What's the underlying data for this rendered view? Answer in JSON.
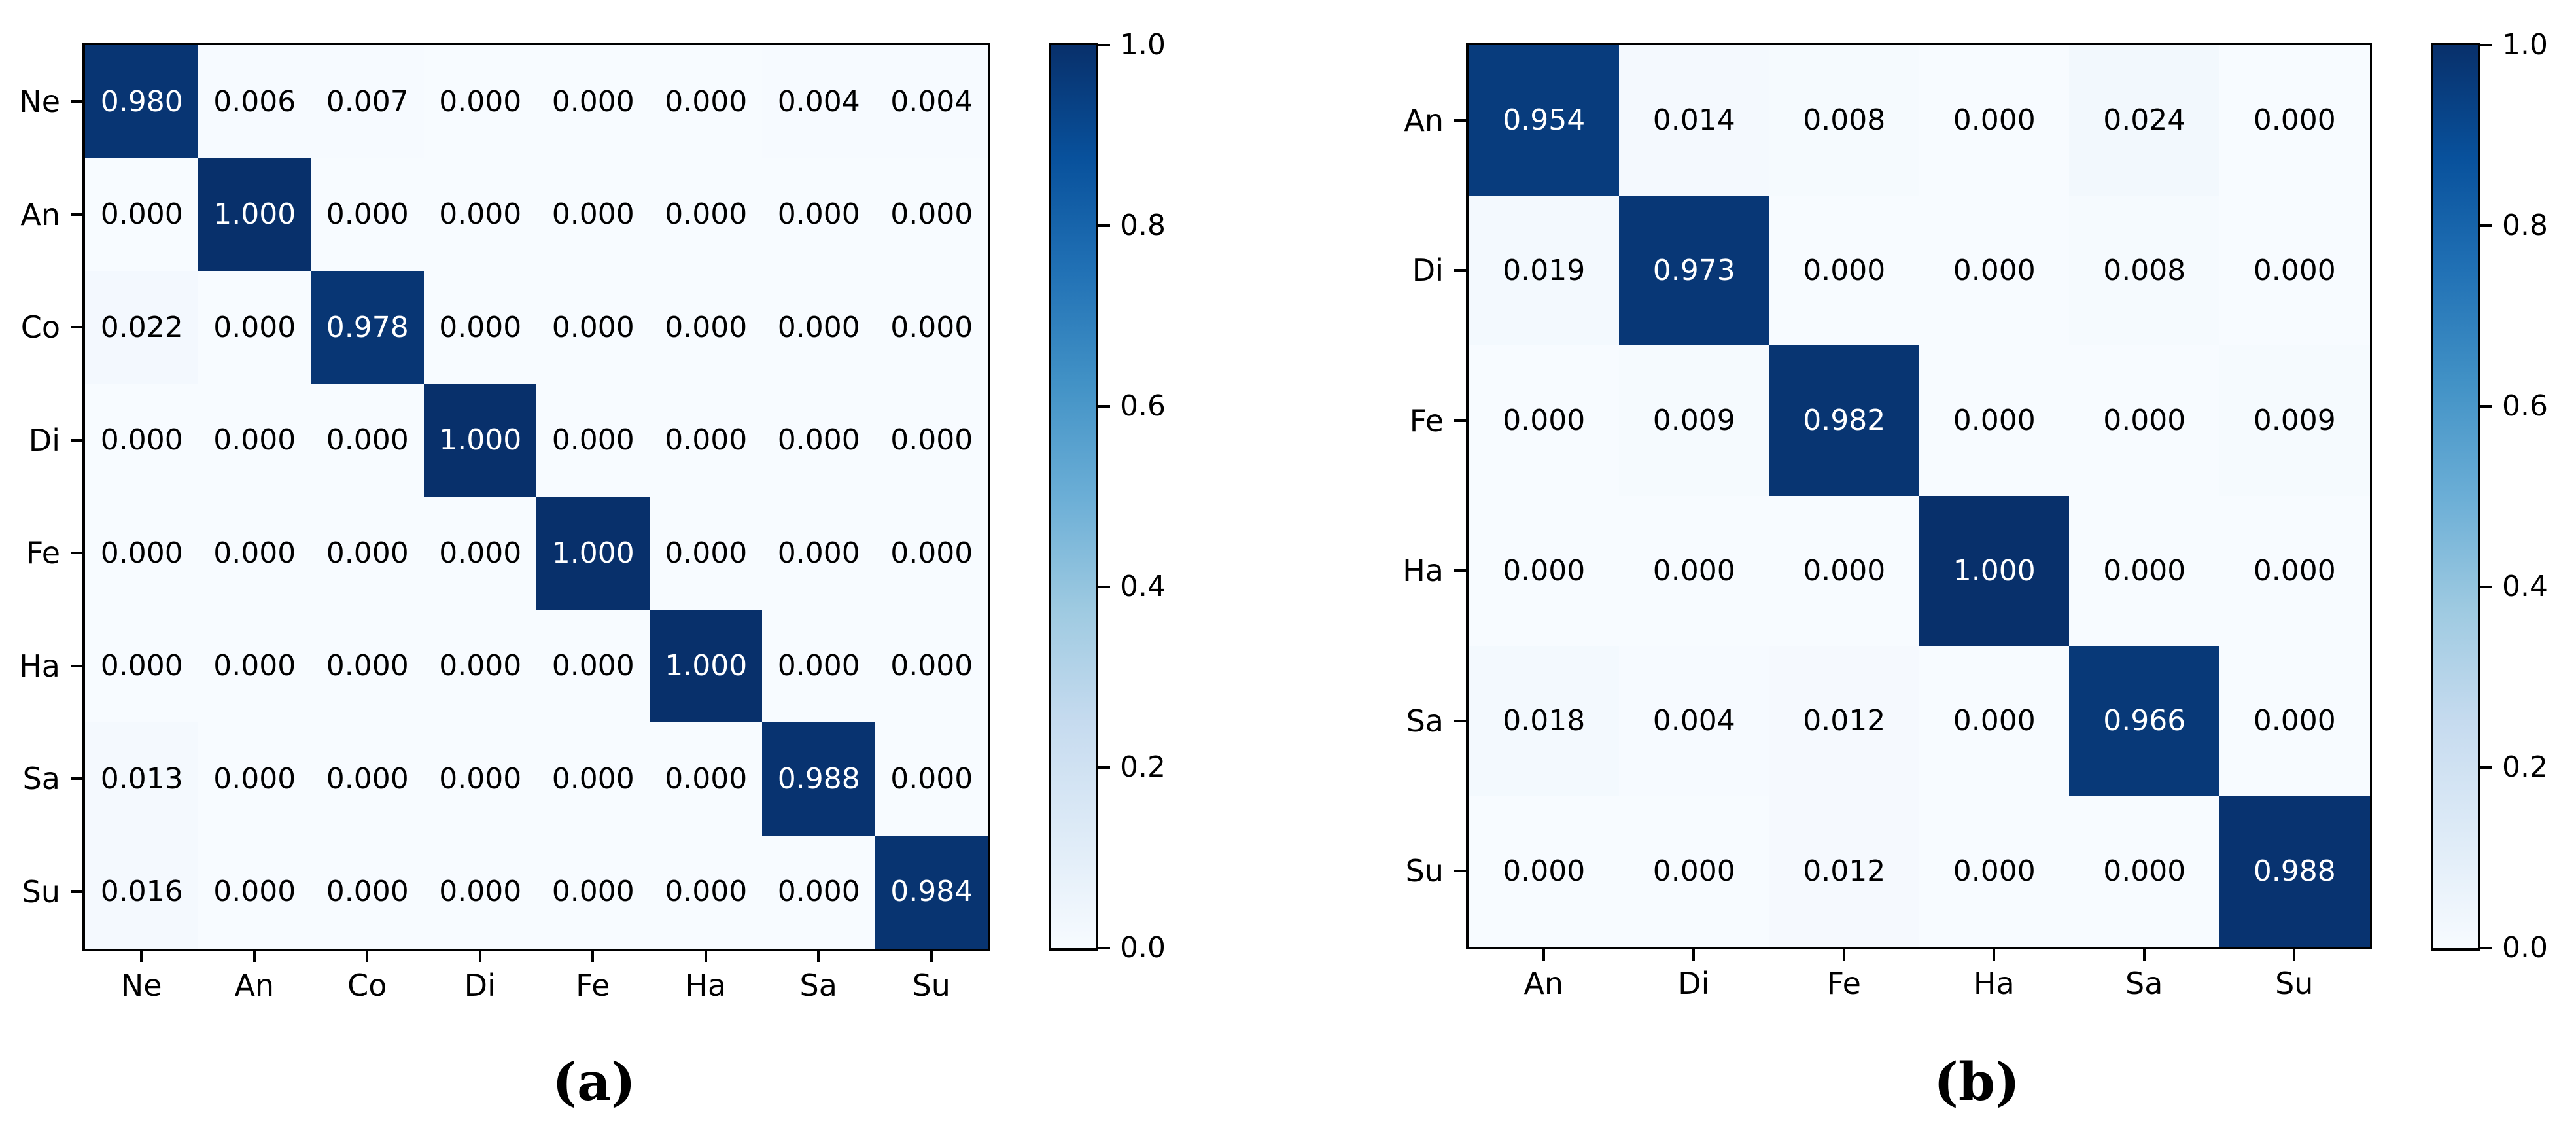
{
  "figure": {
    "background": "#ffffff",
    "text_color": "#000000",
    "captions": [
      "(a)",
      "(b)"
    ],
    "colormap_name": "Blues",
    "colormap_stops": [
      "#f7fbff",
      "#deebf7",
      "#c6dbef",
      "#9ecae1",
      "#6baed6",
      "#4292c6",
      "#2171b5",
      "#08519c",
      "#08306b"
    ]
  },
  "chart_data": [
    {
      "type": "heatmap",
      "title": "",
      "caption": "(a)",
      "colormap": "Blues",
      "vmin": 0.0,
      "vmax": 1.0,
      "grid": false,
      "legend_position": "right-colorbar",
      "colorbar_ticks": [
        1.0,
        0.8,
        0.6,
        0.4,
        0.2,
        0.0
      ],
      "colorbar_tick_labels": [
        "1.0",
        "0.8",
        "0.6",
        "0.4",
        "0.2",
        "0.0"
      ],
      "x_labels": [
        "Ne",
        "An",
        "Co",
        "Di",
        "Fe",
        "Ha",
        "Sa",
        "Su"
      ],
      "y_labels": [
        "Ne",
        "An",
        "Co",
        "Di",
        "Fe",
        "Ha",
        "Sa",
        "Su"
      ],
      "values": [
        [
          0.98,
          0.006,
          0.007,
          0.0,
          0.0,
          0.0,
          0.004,
          0.004
        ],
        [
          0.0,
          1.0,
          0.0,
          0.0,
          0.0,
          0.0,
          0.0,
          0.0
        ],
        [
          0.022,
          0.0,
          0.978,
          0.0,
          0.0,
          0.0,
          0.0,
          0.0
        ],
        [
          0.0,
          0.0,
          0.0,
          1.0,
          0.0,
          0.0,
          0.0,
          0.0
        ],
        [
          0.0,
          0.0,
          0.0,
          0.0,
          1.0,
          0.0,
          0.0,
          0.0
        ],
        [
          0.0,
          0.0,
          0.0,
          0.0,
          0.0,
          1.0,
          0.0,
          0.0
        ],
        [
          0.013,
          0.0,
          0.0,
          0.0,
          0.0,
          0.0,
          0.988,
          0.0
        ],
        [
          0.016,
          0.0,
          0.0,
          0.0,
          0.0,
          0.0,
          0.0,
          0.984
        ]
      ],
      "value_decimals": 3
    },
    {
      "type": "heatmap",
      "title": "",
      "caption": "(b)",
      "colormap": "Blues",
      "vmin": 0.0,
      "vmax": 1.0,
      "grid": false,
      "legend_position": "right-colorbar",
      "colorbar_ticks": [
        1.0,
        0.8,
        0.6,
        0.4,
        0.2,
        0.0
      ],
      "colorbar_tick_labels": [
        "1.0",
        "0.8",
        "0.6",
        "0.4",
        "0.2",
        "0.0"
      ],
      "x_labels": [
        "An",
        "Di",
        "Fe",
        "Ha",
        "Sa",
        "Su"
      ],
      "y_labels": [
        "An",
        "Di",
        "Fe",
        "Ha",
        "Sa",
        "Su"
      ],
      "values": [
        [
          0.954,
          0.014,
          0.008,
          0.0,
          0.024,
          0.0
        ],
        [
          0.019,
          0.973,
          0.0,
          0.0,
          0.008,
          0.0
        ],
        [
          0.0,
          0.009,
          0.982,
          0.0,
          0.0,
          0.009
        ],
        [
          0.0,
          0.0,
          0.0,
          1.0,
          0.0,
          0.0
        ],
        [
          0.018,
          0.004,
          0.012,
          0.0,
          0.966,
          0.0
        ],
        [
          0.0,
          0.0,
          0.012,
          0.0,
          0.0,
          0.988
        ]
      ],
      "value_decimals": 3
    }
  ]
}
